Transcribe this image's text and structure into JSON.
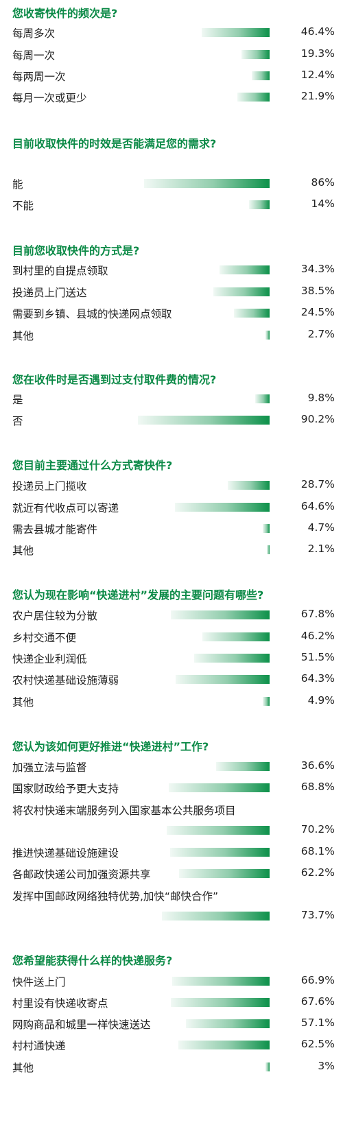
{
  "chart_data": [
    {
      "type": "bar",
      "title": "您收寄快件的频次是?",
      "categories": [
        "每周多次",
        "每周一次",
        "每两周一次",
        "每月一次或更少"
      ],
      "values": [
        46.4,
        19.3,
        12.4,
        21.9
      ],
      "value_labels": [
        "46.4%",
        "19.3%",
        "12.4%",
        "21.9%"
      ]
    },
    {
      "type": "bar",
      "title": "目前收取快件的时效是否能满足您的需求?",
      "categories": [
        "能",
        "不能"
      ],
      "values": [
        86,
        14
      ],
      "value_labels": [
        "86%",
        "14%"
      ]
    },
    {
      "type": "bar",
      "title": "目前您收取快件的方式是?",
      "categories": [
        "到村里的自提点领取",
        "投递员上门送达",
        "需要到乡镇、县城的快递网点领取",
        "其他"
      ],
      "values": [
        34.3,
        38.5,
        24.5,
        2.7
      ],
      "value_labels": [
        "34.3%",
        "38.5%",
        "24.5%",
        "2.7%"
      ]
    },
    {
      "type": "bar",
      "title": "您在收件时是否遇到过支付取件费的情况?",
      "categories": [
        "是",
        "否"
      ],
      "values": [
        9.8,
        90.2
      ],
      "value_labels": [
        "9.8%",
        "90.2%"
      ]
    },
    {
      "type": "bar",
      "title": "您目前主要通过什么方式寄快件?",
      "categories": [
        "投递员上门揽收",
        "就近有代收点可以寄递",
        "需去县城才能寄件",
        "其他"
      ],
      "values": [
        28.7,
        64.6,
        4.7,
        2.1
      ],
      "value_labels": [
        "28.7%",
        "64.6%",
        "4.7%",
        "2.1%"
      ]
    },
    {
      "type": "bar",
      "title": "您认为现在影响“快递进村”发展的主要问题有哪些?",
      "categories": [
        "农户居住较为分散",
        "乡村交通不便",
        "快递企业利润低",
        "农村快递基础设施薄弱",
        "其他"
      ],
      "values": [
        67.8,
        46.2,
        51.5,
        64.3,
        4.9
      ],
      "value_labels": [
        "67.8%",
        "46.2%",
        "51.5%",
        "64.3%",
        "4.9%"
      ]
    },
    {
      "type": "bar",
      "title": "您认为该如何更好推进“快递进村”工作?",
      "categories": [
        "加强立法与监督",
        "国家财政给予更大支持",
        "将农村快递末端服务列入国家基本公共服务项目",
        "推进快递基础设施建设",
        "各邮政快递公司加强资源共享",
        "发挥中国邮政网络独特优势,加快“邮快合作”"
      ],
      "values": [
        36.6,
        68.8,
        70.2,
        68.1,
        62.2,
        73.7
      ],
      "value_labels": [
        "36.6%",
        "68.8%",
        "70.2%",
        "68.1%",
        "62.2%",
        "73.7%"
      ]
    },
    {
      "type": "bar",
      "title": "您希望能获得什么样的快递服务?",
      "categories": [
        "快件送上门",
        "村里设有快递收寄点",
        "网购商品和城里一样快速送达",
        "村村通快递",
        "其他"
      ],
      "values": [
        66.9,
        67.6,
        57.1,
        62.5,
        3
      ],
      "value_labels": [
        "66.9%",
        "67.6%",
        "57.1%",
        "62.5%",
        "3%"
      ]
    }
  ]
}
